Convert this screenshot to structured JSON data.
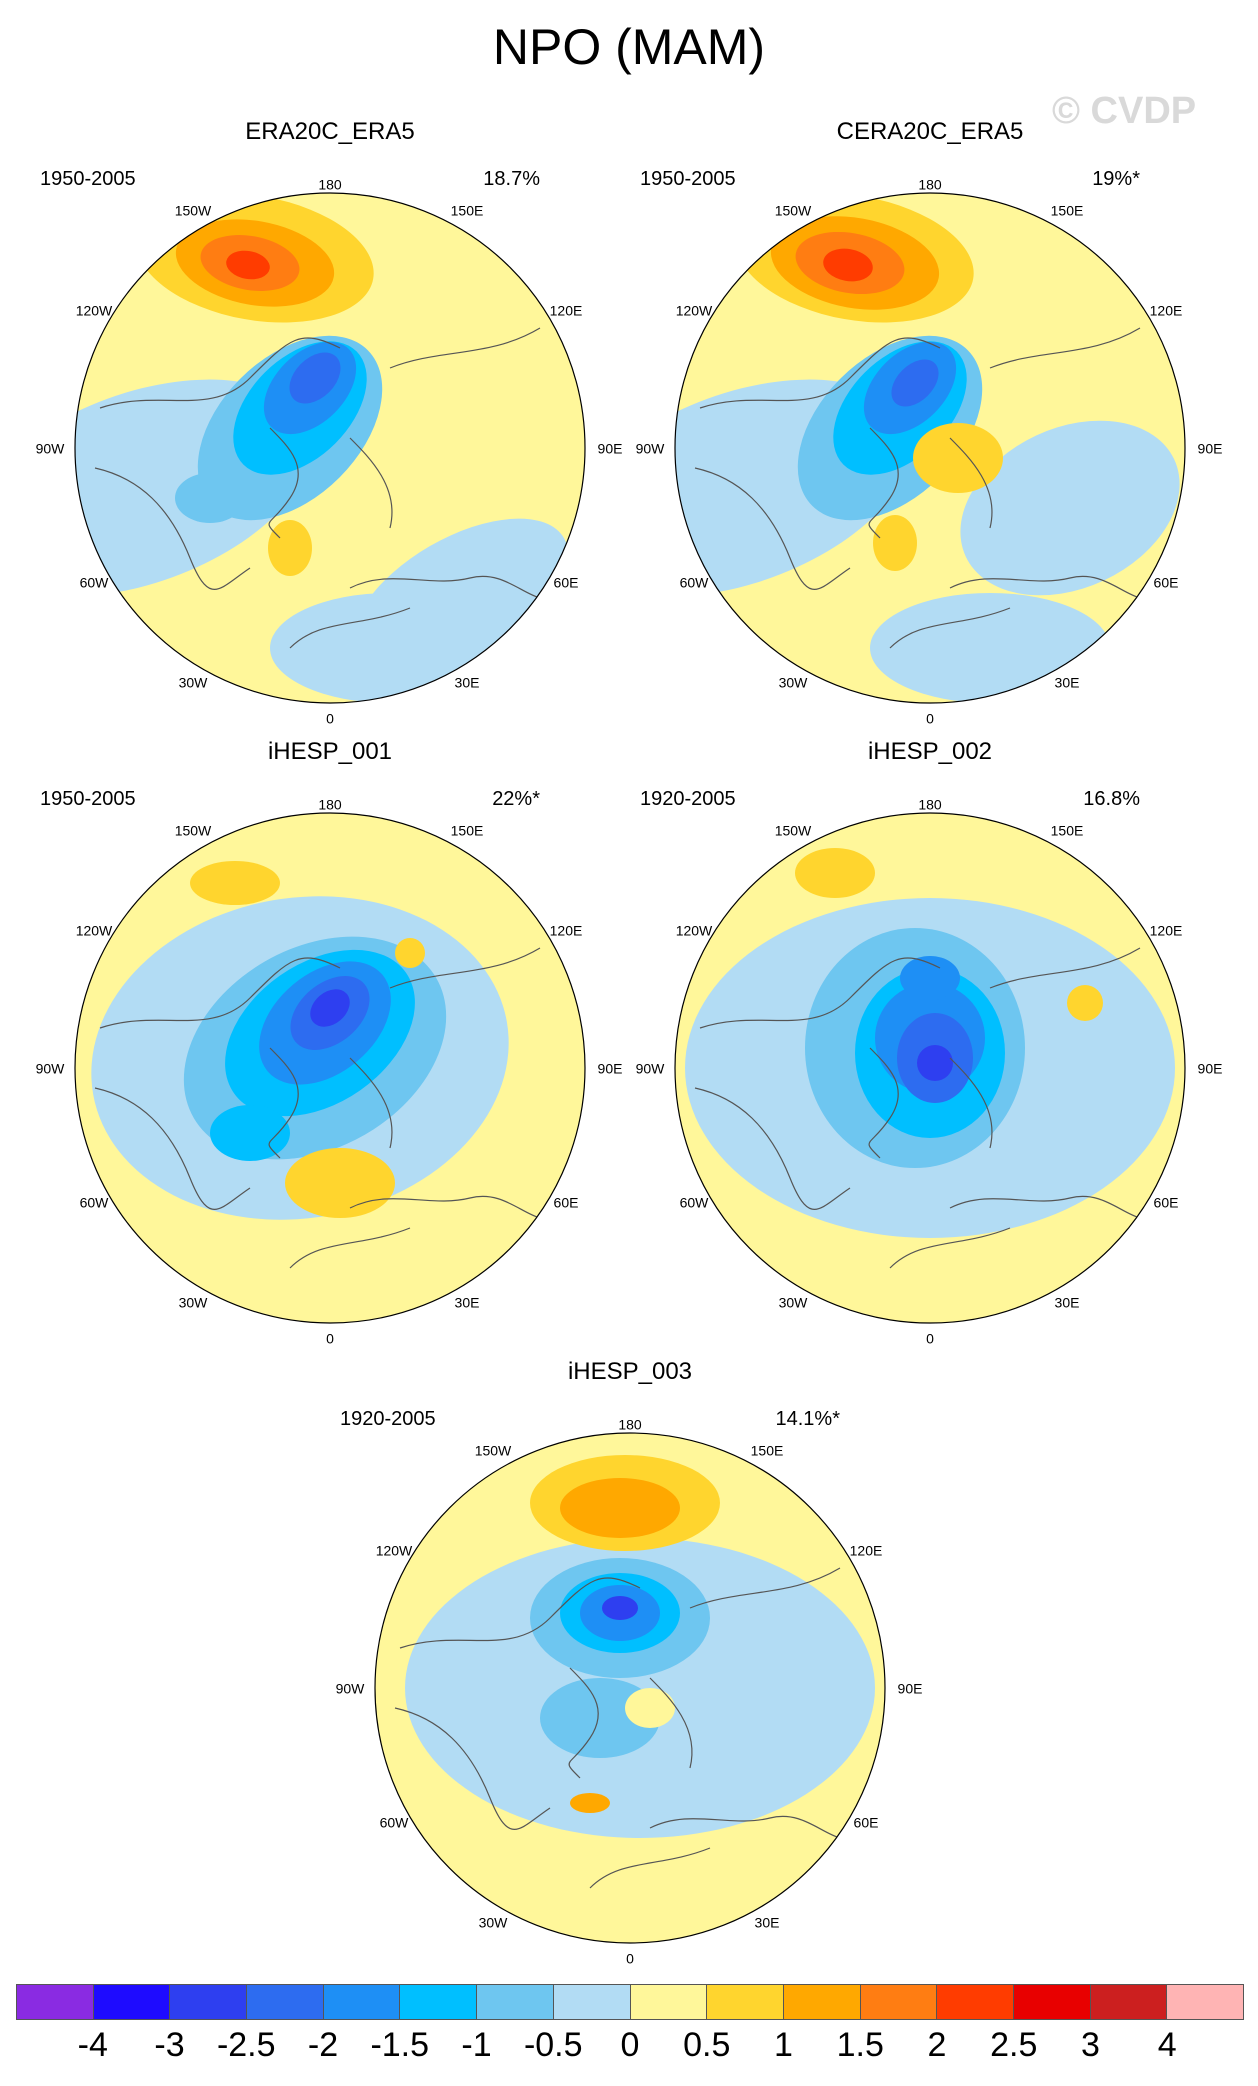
{
  "figure_title": "NPO (MAM)",
  "watermark": "© CVDP",
  "longitude_labels": {
    "top": "180",
    "upper_left": "150W",
    "upper_right": "150E",
    "left_upper": "120W",
    "right_upper": "120E",
    "left": "90W",
    "right": "90E",
    "left_lower": "60W",
    "right_lower": "60E",
    "lower_left": "30W",
    "lower_right": "30E",
    "bottom": "0"
  },
  "panels": [
    {
      "title": "ERA20C_ERA5",
      "period": "1950-2005",
      "percent": "18.7%"
    },
    {
      "title": "CERA20C_ERA5",
      "period": "1950-2005",
      "percent": "19%*"
    },
    {
      "title": "iHESP_001",
      "period": "1950-2005",
      "percent": "22%*"
    },
    {
      "title": "iHESP_002",
      "period": "1920-2005",
      "percent": "16.8%"
    },
    {
      "title": "iHESP_003",
      "period": "1920-2005",
      "percent": "14.1%*"
    }
  ],
  "colorbar": {
    "colors": [
      "#8a2be2",
      "#1e0bff",
      "#2e3ff0",
      "#2d6cf0",
      "#1e8ff5",
      "#00bfff",
      "#6ec6f0",
      "#b2dcf4",
      "#fff79a",
      "#ffd52e",
      "#ffa800",
      "#ff7d12",
      "#ff3c00",
      "#e80000",
      "#cc1f1f",
      "#ffb4b4"
    ],
    "labels": [
      "-4",
      "-3",
      "-2.5",
      "-2",
      "-1.5",
      "-1",
      "-0.5",
      "0",
      "0.5",
      "1",
      "1.5",
      "2",
      "2.5",
      "3",
      "4"
    ]
  },
  "colors": {
    "map_base": "#fff79a",
    "coast": "#555555"
  }
}
